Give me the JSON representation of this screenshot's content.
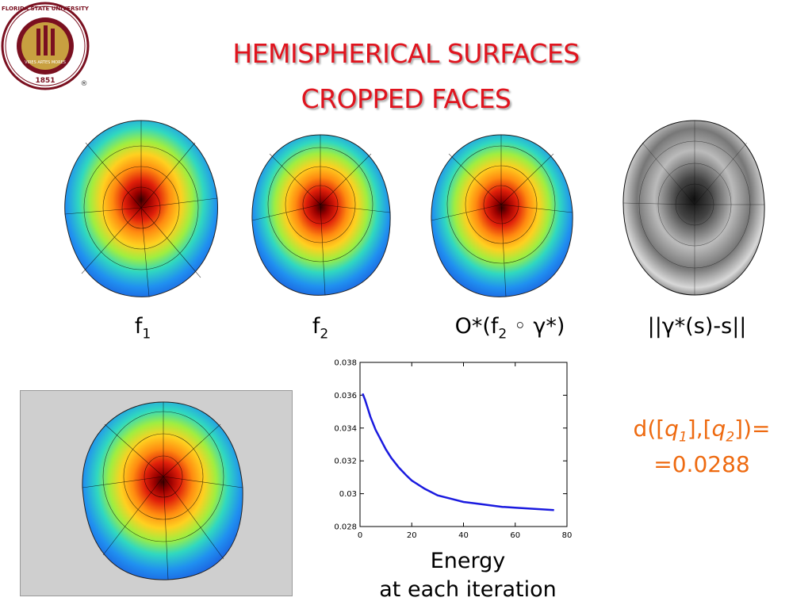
{
  "logo": {
    "ring_text": "FLORIDA STATE UNIVERSITY",
    "year": "1851",
    "motto": "VIRES ARTES MORES",
    "registered": "®"
  },
  "slide": {
    "title_line1": "HEMISPHERICAL SURFACES",
    "title_line2": "CROPPED FACES"
  },
  "captions": {
    "f1": {
      "base": "f",
      "sub": "1"
    },
    "f2": {
      "base": "f",
      "sub": "2"
    },
    "o": {
      "pre": "O*(f",
      "sub": "2",
      "post": " ◦ γ*)"
    },
    "norm": "||γ*(s)-s||"
  },
  "energy_caption": {
    "line1": "Energy",
    "line2": "at each iteration"
  },
  "distance": {
    "p1": "d([",
    "q1_base": "q",
    "q1_sub": "1",
    "p2": "],[",
    "q2_base": "q",
    "q2_sub": "2",
    "p3": "])=",
    "line2": "=0.0288"
  },
  "colors": {
    "title": "#e0141e",
    "distance": "#ee6a10",
    "curve": "#1a1adf",
    "seal": "#7a1020"
  },
  "chart_data": {
    "type": "line",
    "title": "",
    "xlabel": "",
    "ylabel": "",
    "xlim": [
      0,
      80
    ],
    "ylim": [
      0.028,
      0.038
    ],
    "xticks": [
      "0",
      "20",
      "40",
      "60",
      "80"
    ],
    "yticks": [
      "0.028",
      "0.03",
      "0.032",
      "0.034",
      "0.036",
      "0.038"
    ],
    "grid": false,
    "series": [
      {
        "x": [
          1,
          2,
          3,
          4,
          5,
          6,
          8,
          10,
          12,
          15,
          18,
          20,
          25,
          30,
          35,
          40,
          45,
          50,
          55,
          60,
          65,
          70,
          75
        ],
        "y": [
          0.0361,
          0.0357,
          0.0352,
          0.0347,
          0.0343,
          0.0339,
          0.0333,
          0.0327,
          0.0322,
          0.0316,
          0.0311,
          0.0308,
          0.0303,
          0.0299,
          0.0297,
          0.0295,
          0.0294,
          0.0293,
          0.0292,
          0.02915,
          0.0291,
          0.02905,
          0.029
        ]
      }
    ]
  }
}
